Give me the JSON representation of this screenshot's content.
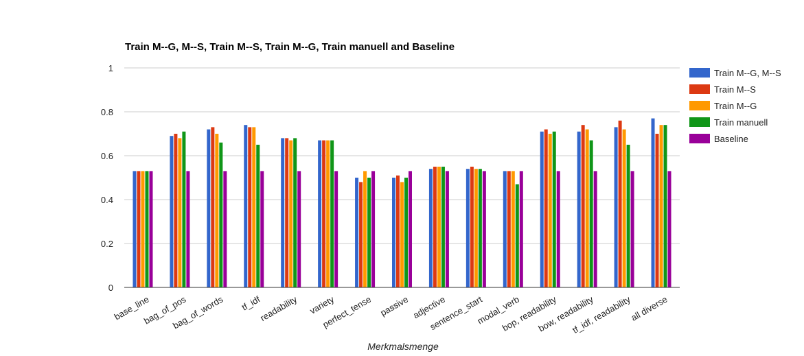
{
  "chart_data": {
    "type": "bar",
    "title": "Train M--G, M--S, Train M--S, Train M--G, Train manuell and Baseline",
    "xlabel": "Merkmalsmenge",
    "ylabel": "",
    "ylim": [
      0,
      1
    ],
    "yticks": [
      0,
      0.2,
      0.4,
      0.6,
      0.8,
      1
    ],
    "ytick_labels": [
      "0",
      "0.2",
      "0.4",
      "0.6",
      "0.8",
      "1"
    ],
    "grid": true,
    "legend_position": "right",
    "categories": [
      "base_line",
      "bag_of_pos",
      "bag_of_words",
      "tf_idf",
      "readability",
      "variety",
      "perfect_tense",
      "passive",
      "adjective",
      "sentence_start",
      "modal_verb",
      "bop, readability",
      "bow, readability",
      "tf_idf, readability",
      "all diverse"
    ],
    "series": [
      {
        "name": "Train M--G, M--S",
        "color": "#3366cc",
        "values": [
          0.53,
          0.69,
          0.72,
          0.74,
          0.68,
          0.67,
          0.5,
          0.5,
          0.54,
          0.54,
          0.53,
          0.71,
          0.71,
          0.73,
          0.77
        ]
      },
      {
        "name": "Train M--S",
        "color": "#dc3912",
        "values": [
          0.53,
          0.7,
          0.73,
          0.73,
          0.68,
          0.67,
          0.48,
          0.51,
          0.55,
          0.55,
          0.53,
          0.72,
          0.74,
          0.76,
          0.7
        ]
      },
      {
        "name": "Train M--G",
        "color": "#ff9900",
        "values": [
          0.53,
          0.68,
          0.7,
          0.73,
          0.67,
          0.67,
          0.53,
          0.48,
          0.55,
          0.54,
          0.53,
          0.7,
          0.72,
          0.72,
          0.74
        ]
      },
      {
        "name": "Train manuell",
        "color": "#109618",
        "values": [
          0.53,
          0.71,
          0.66,
          0.65,
          0.68,
          0.67,
          0.5,
          0.5,
          0.55,
          0.54,
          0.47,
          0.71,
          0.67,
          0.65,
          0.74
        ]
      },
      {
        "name": "Baseline",
        "color": "#990099",
        "values": [
          0.53,
          0.53,
          0.53,
          0.53,
          0.53,
          0.53,
          0.53,
          0.53,
          0.53,
          0.53,
          0.53,
          0.53,
          0.53,
          0.53,
          0.53
        ]
      }
    ]
  }
}
